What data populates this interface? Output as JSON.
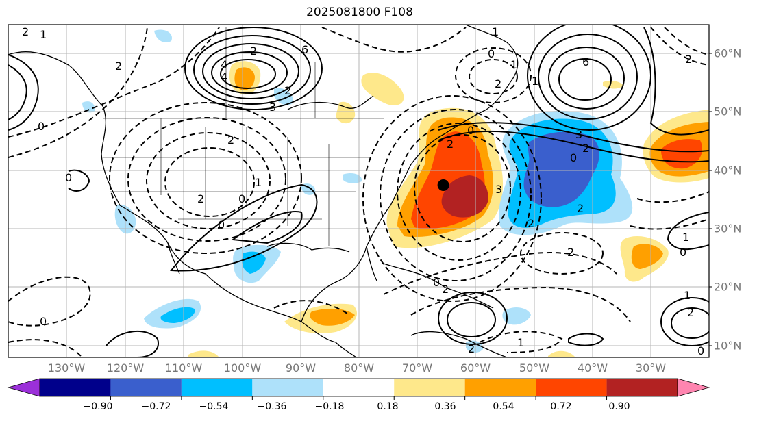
{
  "title": "2025081800 F108",
  "map": {
    "lon_labels": [
      "130°W",
      "120°W",
      "110°W",
      "100°W",
      "90°W",
      "80°W",
      "70°W",
      "60°W",
      "50°W",
      "40°W",
      "30°W"
    ],
    "lat_labels": [
      "60°N",
      "50°N",
      "40°N",
      "30°N",
      "20°N",
      "10°N"
    ],
    "point_marker": {
      "lon": -65.5,
      "lat": 37.3
    }
  },
  "colorbar": {
    "ticks": [
      "−0.90",
      "−0.72",
      "−0.54",
      "−0.36",
      "−0.18",
      "0.18",
      "0.36",
      "0.54",
      "0.72",
      "0.90"
    ],
    "colors": [
      "#9b30d9",
      "#00008b",
      "#3a5fcd",
      "#00bfff",
      "#aee1fa",
      "#ffffff",
      "#fee88b",
      "#ffa000",
      "#ff4500",
      "#b22222",
      "#ff85b0"
    ]
  },
  "contour_labels": [
    "2",
    "1",
    "2",
    "6",
    "4",
    "2",
    "4",
    "3",
    "2",
    "0",
    "0",
    "1",
    "2",
    "0",
    "2",
    "1",
    "1",
    "0",
    "6",
    "1",
    "2",
    "3",
    "0",
    "2",
    "0",
    "2",
    "0",
    "1",
    "2",
    "3",
    "2",
    "2",
    "2",
    "0",
    "1",
    "0",
    "2",
    "0",
    "0",
    "1",
    "2",
    "2"
  ]
}
